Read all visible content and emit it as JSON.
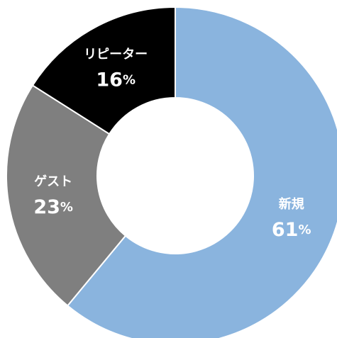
{
  "chart_data": {
    "type": "pie",
    "categories": [
      "新規",
      "ゲスト",
      "リピーター"
    ],
    "values": [
      61,
      23,
      16
    ],
    "unit": "%",
    "colors": [
      "#8ab4de",
      "#7f7f7f",
      "#000000"
    ],
    "donut": true
  }
}
